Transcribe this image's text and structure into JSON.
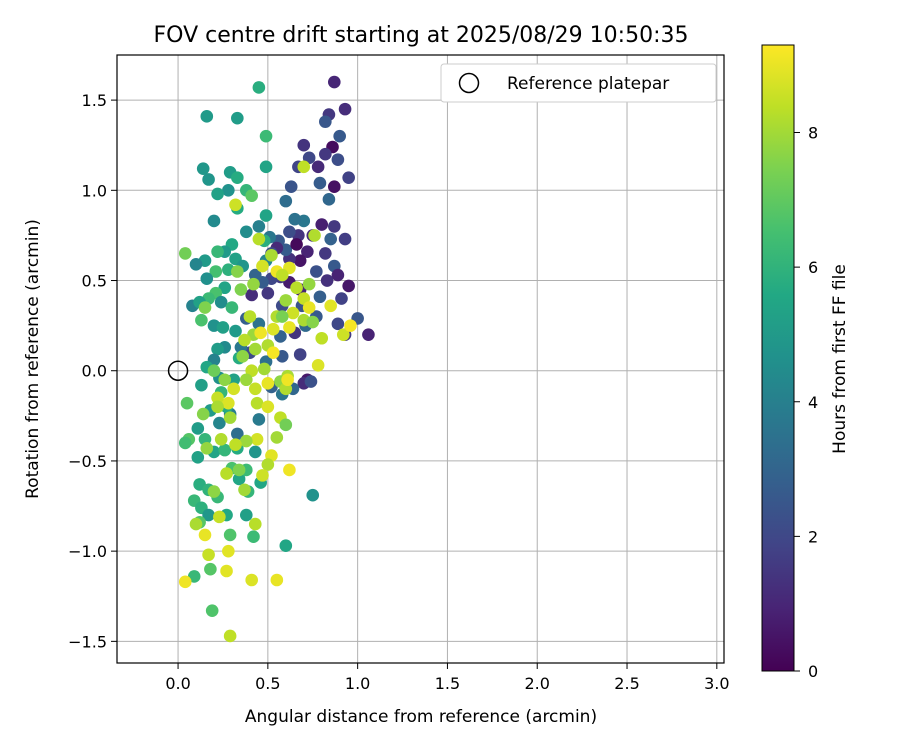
{
  "chart_data": {
    "type": "scatter",
    "title": "FOV centre drift starting at 2025/08/29 10:50:35",
    "xlabel": "Angular distance from reference (arcmin)",
    "ylabel": "Rotation from reference (arcmin)",
    "xlim": [
      -0.34,
      3.04
    ],
    "ylim": [
      -1.62,
      1.75
    ],
    "xticks": [
      "0.0",
      "0.5",
      "1.0",
      "1.5",
      "2.0",
      "2.5",
      "3.0"
    ],
    "xtick_values": [
      0,
      0.5,
      1.0,
      1.5,
      2.0,
      2.5,
      3.0
    ],
    "yticks": [
      "−1.5",
      "−1.0",
      "−0.5",
      "0.0",
      "0.5",
      "1.0",
      "1.5"
    ],
    "ytick_values": [
      -1.5,
      -1.0,
      -0.5,
      0.0,
      0.5,
      1.0,
      1.5
    ],
    "grid": true,
    "colormap": "viridis",
    "colorbar": {
      "label": "Hours from first FF file",
      "range": [
        0,
        9.3
      ],
      "ticks": [
        "0",
        "2",
        "4",
        "6",
        "8"
      ],
      "tick_values": [
        0,
        2,
        4,
        6,
        8
      ]
    },
    "legend": {
      "placement": "top-right",
      "entries": [
        "Reference platepar"
      ]
    },
    "reference_point": {
      "x": 0.0,
      "y": 0.0
    },
    "points": [
      [
        0.87,
        1.6,
        1.0
      ],
      [
        0.93,
        1.45,
        1.2
      ],
      [
        0.84,
        1.42,
        1.5
      ],
      [
        0.82,
        1.38,
        2.5
      ],
      [
        0.9,
        1.3,
        2.6
      ],
      [
        0.86,
        1.24,
        0.3
      ],
      [
        0.7,
        1.25,
        1.4
      ],
      [
        0.82,
        1.2,
        1.5
      ],
      [
        0.73,
        1.18,
        2.0
      ],
      [
        0.89,
        1.17,
        2.2
      ],
      [
        0.78,
        1.13,
        1.1
      ],
      [
        0.95,
        1.07,
        1.8
      ],
      [
        0.67,
        1.13,
        1.9
      ],
      [
        0.87,
        1.02,
        0.4
      ],
      [
        0.79,
        1.04,
        2.7
      ],
      [
        0.63,
        1.02,
        2.4
      ],
      [
        0.84,
        0.95,
        3.1
      ],
      [
        0.6,
        0.94,
        3.3
      ],
      [
        0.7,
        0.83,
        3.7
      ],
      [
        0.8,
        0.81,
        0.8
      ],
      [
        0.87,
        0.8,
        1.5
      ],
      [
        0.93,
        0.73,
        1.7
      ],
      [
        0.75,
        0.75,
        1.2
      ],
      [
        0.67,
        0.75,
        1.4
      ],
      [
        0.62,
        0.77,
        2.2
      ],
      [
        0.65,
        0.84,
        3.5
      ],
      [
        0.56,
        0.72,
        2.6
      ],
      [
        0.51,
        0.74,
        3.7
      ],
      [
        0.85,
        0.73,
        2.9
      ],
      [
        0.82,
        0.65,
        1.5
      ],
      [
        0.72,
        0.66,
        0.9
      ],
      [
        0.68,
        0.61,
        0.5
      ],
      [
        0.62,
        0.62,
        1.3
      ],
      [
        0.6,
        0.67,
        2.7
      ],
      [
        0.55,
        0.68,
        1.1
      ],
      [
        0.52,
        0.65,
        2.1
      ],
      [
        0.49,
        0.61,
        4.2
      ],
      [
        0.66,
        0.7,
        0.2
      ],
      [
        0.87,
        0.58,
        2.6
      ],
      [
        0.77,
        0.55,
        2.3
      ],
      [
        0.89,
        0.53,
        0.9
      ],
      [
        0.83,
        0.5,
        1.3
      ],
      [
        0.95,
        0.47,
        0.6
      ],
      [
        0.91,
        0.4,
        1.8
      ],
      [
        0.79,
        0.41,
        2.8
      ],
      [
        0.68,
        0.45,
        1.0
      ],
      [
        0.62,
        0.49,
        0.7
      ],
      [
        0.57,
        0.52,
        1.6
      ],
      [
        0.52,
        0.51,
        2.0
      ],
      [
        0.47,
        0.49,
        2.7
      ],
      [
        0.43,
        0.53,
        3.0
      ],
      [
        0.69,
        0.36,
        2.4
      ],
      [
        0.58,
        0.36,
        2.1
      ],
      [
        0.5,
        0.43,
        1.5
      ],
      [
        0.41,
        0.42,
        1.2
      ],
      [
        1.0,
        0.29,
        2.5
      ],
      [
        1.06,
        0.2,
        0.9
      ],
      [
        0.93,
        0.2,
        1.6
      ],
      [
        0.89,
        0.26,
        2.0
      ],
      [
        0.77,
        0.3,
        2.6
      ],
      [
        0.71,
        0.25,
        3.2
      ],
      [
        0.65,
        0.21,
        1.4
      ],
      [
        0.57,
        0.19,
        2.9
      ],
      [
        0.45,
        0.26,
        3.5
      ],
      [
        0.38,
        0.29,
        2.8
      ],
      [
        0.68,
        0.09,
        1.8
      ],
      [
        0.58,
        0.08,
        2.6
      ],
      [
        0.49,
        0.05,
        3.4
      ],
      [
        0.4,
        0.1,
        2.1
      ],
      [
        0.35,
        0.13,
        3.7
      ],
      [
        0.72,
        -0.05,
        0.6
      ],
      [
        0.7,
        -0.07,
        1.2
      ],
      [
        0.74,
        -0.06,
        2.3
      ],
      [
        0.64,
        -0.1,
        3.1
      ],
      [
        0.58,
        -0.13,
        3.6
      ],
      [
        0.52,
        -0.09,
        2.9
      ],
      [
        0.45,
        -0.27,
        3.8
      ],
      [
        0.33,
        -0.35,
        3.3
      ],
      [
        0.29,
        -0.24,
        3.9
      ],
      [
        0.45,
        1.57,
        5.8
      ],
      [
        0.33,
        1.4,
        5.1
      ],
      [
        0.16,
        1.41,
        5.0
      ],
      [
        0.49,
        1.3,
        6.3
      ],
      [
        0.49,
        1.13,
        5.4
      ],
      [
        0.14,
        1.12,
        4.9
      ],
      [
        0.17,
        1.06,
        4.8
      ],
      [
        0.29,
        1.1,
        5.1
      ],
      [
        0.33,
        1.07,
        5.7
      ],
      [
        0.38,
        1.0,
        6.1
      ],
      [
        0.28,
        1.0,
        4.7
      ],
      [
        0.22,
        0.98,
        5.3
      ],
      [
        0.41,
        0.97,
        6.9
      ],
      [
        0.33,
        0.9,
        5.7
      ],
      [
        0.2,
        0.83,
        4.4
      ],
      [
        0.49,
        0.86,
        5.4
      ],
      [
        0.45,
        0.8,
        4.0
      ],
      [
        0.38,
        0.77,
        4.5
      ],
      [
        0.48,
        0.72,
        5.8
      ],
      [
        0.3,
        0.7,
        5.6
      ],
      [
        0.26,
        0.66,
        5.0
      ],
      [
        0.22,
        0.66,
        6.2
      ],
      [
        0.15,
        0.61,
        5.0
      ],
      [
        0.1,
        0.59,
        4.2
      ],
      [
        0.32,
        0.62,
        5.3
      ],
      [
        0.36,
        0.58,
        4.8
      ],
      [
        0.28,
        0.56,
        5.9
      ],
      [
        0.21,
        0.55,
        6.5
      ],
      [
        0.16,
        0.51,
        4.6
      ],
      [
        0.26,
        0.46,
        5.4
      ],
      [
        0.21,
        0.43,
        6.6
      ],
      [
        0.17,
        0.4,
        6.3
      ],
      [
        0.08,
        0.36,
        4.1
      ],
      [
        0.12,
        0.38,
        5.3
      ],
      [
        0.24,
        0.38,
        4.5
      ],
      [
        0.3,
        0.35,
        6.2
      ],
      [
        0.13,
        0.28,
        6.6
      ],
      [
        0.2,
        0.25,
        4.7
      ],
      [
        0.25,
        0.24,
        5.2
      ],
      [
        0.32,
        0.22,
        5.0
      ],
      [
        0.26,
        0.13,
        4.4
      ],
      [
        0.22,
        0.12,
        5.1
      ],
      [
        0.34,
        0.07,
        5.7
      ],
      [
        0.2,
        0.06,
        4.1
      ],
      [
        0.16,
        0.02,
        5.5
      ],
      [
        0.13,
        -0.08,
        5.2
      ],
      [
        0.23,
        -0.04,
        4.6
      ],
      [
        0.31,
        -0.05,
        5.3
      ],
      [
        0.24,
        -0.12,
        6.1
      ],
      [
        0.18,
        -0.22,
        5.0
      ],
      [
        0.23,
        -0.29,
        4.2
      ],
      [
        0.27,
        -0.2,
        5.6
      ],
      [
        0.15,
        -0.38,
        6.1
      ],
      [
        0.11,
        -0.32,
        5.1
      ],
      [
        0.05,
        -0.18,
        6.9
      ],
      [
        0.11,
        -0.48,
        5.3
      ],
      [
        0.06,
        -0.38,
        6.8
      ],
      [
        0.04,
        -0.4,
        6.4
      ],
      [
        0.2,
        -0.45,
        5.4
      ],
      [
        0.26,
        -0.44,
        6.1
      ],
      [
        0.33,
        -0.43,
        5.7
      ],
      [
        0.3,
        -0.54,
        6.6
      ],
      [
        0.34,
        -0.6,
        5.5
      ],
      [
        0.38,
        -0.55,
        6.3
      ],
      [
        0.43,
        -0.45,
        4.8
      ],
      [
        0.39,
        -0.67,
        6.1
      ],
      [
        0.46,
        -0.62,
        5.5
      ],
      [
        0.12,
        -0.63,
        5.8
      ],
      [
        0.17,
        -0.66,
        6.0
      ],
      [
        0.22,
        -0.7,
        6.2
      ],
      [
        0.09,
        -0.72,
        6.2
      ],
      [
        0.13,
        -0.76,
        5.9
      ],
      [
        0.17,
        -0.8,
        4.9
      ],
      [
        0.12,
        -0.84,
        6.8
      ],
      [
        0.27,
        -0.8,
        5.6
      ],
      [
        0.38,
        -0.8,
        5.2
      ],
      [
        0.42,
        -0.92,
        6.3
      ],
      [
        0.29,
        -0.91,
        6.7
      ],
      [
        0.6,
        -0.97,
        5.5
      ],
      [
        0.75,
        -0.69,
        4.7
      ],
      [
        0.18,
        -1.1,
        6.8
      ],
      [
        0.09,
        -1.14,
        6.2
      ],
      [
        0.19,
        -1.33,
        6.7
      ],
      [
        0.7,
        1.13,
        8.4
      ],
      [
        0.32,
        0.92,
        8.6
      ],
      [
        0.45,
        0.73,
        8.3
      ],
      [
        0.76,
        0.75,
        8.2
      ],
      [
        0.52,
        0.64,
        8.1
      ],
      [
        0.62,
        0.57,
        8.9
      ],
      [
        0.55,
        0.55,
        9.1
      ],
      [
        0.47,
        0.58,
        8.7
      ],
      [
        0.58,
        0.53,
        8.4
      ],
      [
        0.33,
        0.55,
        7.6
      ],
      [
        0.73,
        0.48,
        7.8
      ],
      [
        0.66,
        0.46,
        8.3
      ],
      [
        0.35,
        0.45,
        7.5
      ],
      [
        0.42,
        0.48,
        7.8
      ],
      [
        0.6,
        0.39,
        7.9
      ],
      [
        0.7,
        0.4,
        8.5
      ],
      [
        0.73,
        0.35,
        9.0
      ],
      [
        0.55,
        0.3,
        8.2
      ],
      [
        0.64,
        0.32,
        8.6
      ],
      [
        0.7,
        0.28,
        8.1
      ],
      [
        0.75,
        0.27,
        7.6
      ],
      [
        0.62,
        0.24,
        9.0
      ],
      [
        0.53,
        0.23,
        8.8
      ],
      [
        0.42,
        0.2,
        7.9
      ],
      [
        0.4,
        0.3,
        8.3
      ],
      [
        0.46,
        0.21,
        9.1
      ],
      [
        0.37,
        0.17,
        8.3
      ],
      [
        0.5,
        0.14,
        8.2
      ],
      [
        0.43,
        0.12,
        8.0
      ],
      [
        0.53,
        0.1,
        9.2
      ],
      [
        0.36,
        0.08,
        7.7
      ],
      [
        0.78,
        0.03,
        8.8
      ],
      [
        0.8,
        0.18,
        8.4
      ],
      [
        0.92,
        0.2,
        8.6
      ],
      [
        0.96,
        0.25,
        9.2
      ],
      [
        0.85,
        0.36,
        8.9
      ],
      [
        0.41,
        0.0,
        8.4
      ],
      [
        0.48,
        0.01,
        8.0
      ],
      [
        0.5,
        -0.07,
        9.0
      ],
      [
        0.43,
        -0.1,
        8.5
      ],
      [
        0.61,
        -0.03,
        8.1
      ],
      [
        0.57,
        -0.06,
        7.7
      ],
      [
        0.6,
        -0.1,
        8.2
      ],
      [
        0.61,
        -0.05,
        9.1
      ],
      [
        0.38,
        -0.05,
        7.9
      ],
      [
        0.31,
        -0.1,
        8.7
      ],
      [
        0.28,
        -0.18,
        8.8
      ],
      [
        0.26,
        -0.05,
        7.7
      ],
      [
        0.22,
        -0.15,
        8.5
      ],
      [
        0.22,
        -0.2,
        8.1
      ],
      [
        0.29,
        -0.26,
        8.0
      ],
      [
        0.44,
        -0.18,
        8.3
      ],
      [
        0.5,
        -0.2,
        8.8
      ],
      [
        0.57,
        -0.26,
        8.4
      ],
      [
        0.55,
        -0.37,
        8.0
      ],
      [
        0.44,
        -0.38,
        8.7
      ],
      [
        0.38,
        -0.39,
        7.9
      ],
      [
        0.32,
        -0.41,
        8.4
      ],
      [
        0.24,
        -0.38,
        8.2
      ],
      [
        0.14,
        -0.24,
        7.6
      ],
      [
        0.16,
        -0.43,
        7.8
      ],
      [
        0.52,
        -0.47,
        8.9
      ],
      [
        0.5,
        -0.52,
        8.2
      ],
      [
        0.47,
        -0.58,
        8.6
      ],
      [
        0.62,
        -0.55,
        9.1
      ],
      [
        0.27,
        -0.57,
        8.3
      ],
      [
        0.34,
        -0.55,
        7.5
      ],
      [
        0.37,
        -0.66,
        8.0
      ],
      [
        0.2,
        -0.67,
        7.7
      ],
      [
        0.23,
        -0.81,
        8.5
      ],
      [
        0.43,
        -0.85,
        8.3
      ],
      [
        0.1,
        -0.85,
        8.1
      ],
      [
        0.15,
        -0.91,
        9.0
      ],
      [
        0.28,
        -1.0,
        8.9
      ],
      [
        0.17,
        -1.02,
        8.5
      ],
      [
        0.27,
        -1.11,
        8.9
      ],
      [
        0.41,
        -1.16,
        8.8
      ],
      [
        0.55,
        -1.16,
        9.0
      ],
      [
        0.04,
        -1.17,
        9.1
      ],
      [
        0.29,
        -1.47,
        8.4
      ],
      [
        0.04,
        0.65,
        7.3
      ],
      [
        0.15,
        0.35,
        7.5
      ],
      [
        0.58,
        0.3,
        7.4
      ],
      [
        0.2,
        0.0,
        7.2
      ],
      [
        0.6,
        -0.3,
        7.3
      ]
    ]
  }
}
